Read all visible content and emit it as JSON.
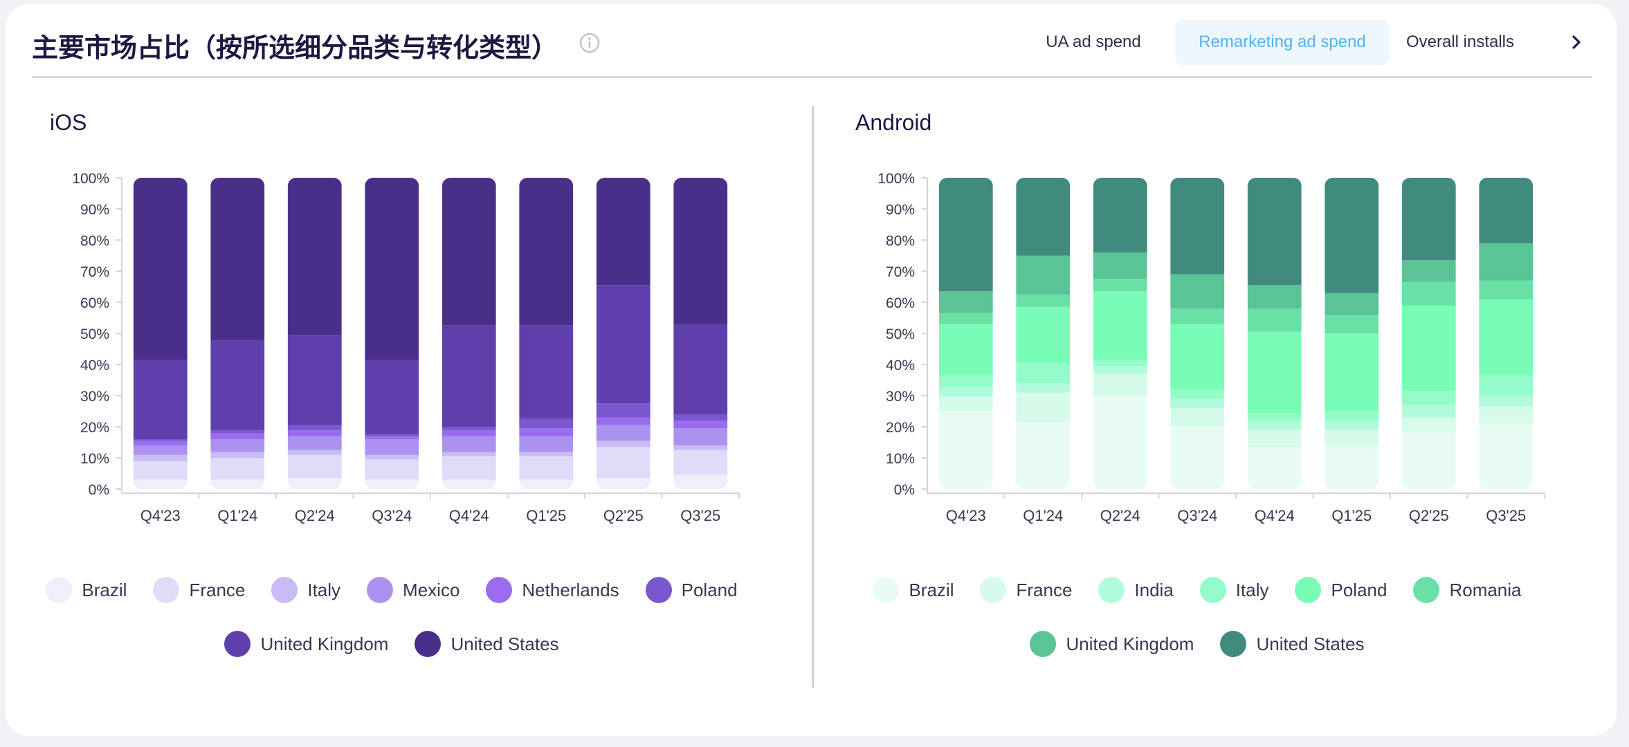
{
  "header": {
    "title": "主要市场占比（按所选细分品类与转化类型）",
    "info_icon": "info-circle-icon",
    "tabs": [
      {
        "label": "UA ad spend",
        "active": false
      },
      {
        "label": "Remarketing ad spend",
        "active": true
      },
      {
        "label": "Overall installs",
        "active": false
      }
    ],
    "next_icon": "chevron-right-icon"
  },
  "colors": {
    "active_tab_text": "#4fb3ef",
    "active_tab_bg": "#eef7fd",
    "ios_palette": [
      "#f1eefb",
      "#e0dbf8",
      "#c9bbf3",
      "#ab92ef",
      "#9a6cf0",
      "#7a56cf",
      "#5f3fab",
      "#4a2f8a"
    ],
    "android_palette": [
      "#e8fcf4",
      "#d6fbea",
      "#b0fbdc",
      "#93fcc9",
      "#79fcb5",
      "#6ae0a6",
      "#5ac496",
      "#408a7e"
    ]
  },
  "chart_data": [
    {
      "type": "bar",
      "stacked": true,
      "title": "iOS",
      "categories": [
        "Q4'23",
        "Q1'24",
        "Q2'24",
        "Q3'24",
        "Q4'24",
        "Q1'25",
        "Q2'25",
        "Q3'25"
      ],
      "yticks": [
        "0%",
        "10%",
        "20%",
        "30%",
        "40%",
        "50%",
        "60%",
        "70%",
        "80%",
        "90%",
        "100%"
      ],
      "ylim": [
        0,
        100
      ],
      "legend_placement": "bottom",
      "series": [
        {
          "name": "Brazil",
          "values": [
            3,
            3,
            3.5,
            3,
            3,
            3,
            3.5,
            4.5
          ]
        },
        {
          "name": "France",
          "values": [
            6,
            7,
            7.5,
            6.5,
            7.5,
            7.5,
            10,
            8
          ]
        },
        {
          "name": "Italy",
          "values": [
            2,
            2,
            1.5,
            1.5,
            1.5,
            1.5,
            2,
            1.5
          ]
        },
        {
          "name": "Mexico",
          "values": [
            3,
            4,
            4.5,
            5,
            5,
            5,
            5,
            5.5
          ]
        },
        {
          "name": "Netherlands",
          "values": [
            1.5,
            2,
            2,
            1,
            2,
            2.5,
            2.5,
            2.5
          ]
        },
        {
          "name": "Poland",
          "values": [
            0.5,
            1,
            1.5,
            0.5,
            1,
            3,
            4.5,
            2
          ]
        },
        {
          "name": "United Kingdom",
          "values": [
            25.5,
            29,
            29,
            24,
            32.5,
            30,
            38,
            29
          ]
        },
        {
          "name": "United States",
          "values": [
            58.5,
            52,
            50.5,
            58.5,
            47.5,
            47.5,
            34.5,
            47
          ]
        }
      ]
    },
    {
      "type": "bar",
      "stacked": true,
      "title": "Android",
      "categories": [
        "Q4'23",
        "Q1'24",
        "Q2'24",
        "Q3'24",
        "Q4'24",
        "Q1'25",
        "Q2'25",
        "Q3'25"
      ],
      "yticks": [
        "0%",
        "10%",
        "20%",
        "30%",
        "40%",
        "50%",
        "60%",
        "70%",
        "80%",
        "90%",
        "100%"
      ],
      "ylim": [
        0,
        100
      ],
      "legend_placement": "bottom",
      "series": [
        {
          "name": "Brazil",
          "values": [
            25,
            21.5,
            30,
            20,
            13.5,
            14,
            18.5,
            21
          ]
        },
        {
          "name": "France",
          "values": [
            4.5,
            9.5,
            7,
            6,
            5.5,
            5,
            4.5,
            5.5
          ]
        },
        {
          "name": "India",
          "values": [
            3,
            3,
            2.5,
            3,
            3,
            3,
            4,
            3.5
          ]
        },
        {
          "name": "Italy",
          "values": [
            4,
            6.5,
            2,
            3,
            2.5,
            3,
            4.5,
            6.5
          ]
        },
        {
          "name": "Poland",
          "values": [
            16.5,
            18,
            22,
            21,
            26,
            25,
            27.5,
            24.5
          ]
        },
        {
          "name": "Romania",
          "values": [
            3.5,
            4,
            4,
            5,
            7.5,
            6,
            7.5,
            6
          ]
        },
        {
          "name": "United Kingdom",
          "values": [
            7,
            12.5,
            8.5,
            11,
            7.5,
            7,
            7,
            12
          ]
        },
        {
          "name": "United States",
          "values": [
            36.5,
            25,
            24,
            31,
            34.5,
            37,
            26.5,
            21
          ]
        }
      ]
    }
  ]
}
